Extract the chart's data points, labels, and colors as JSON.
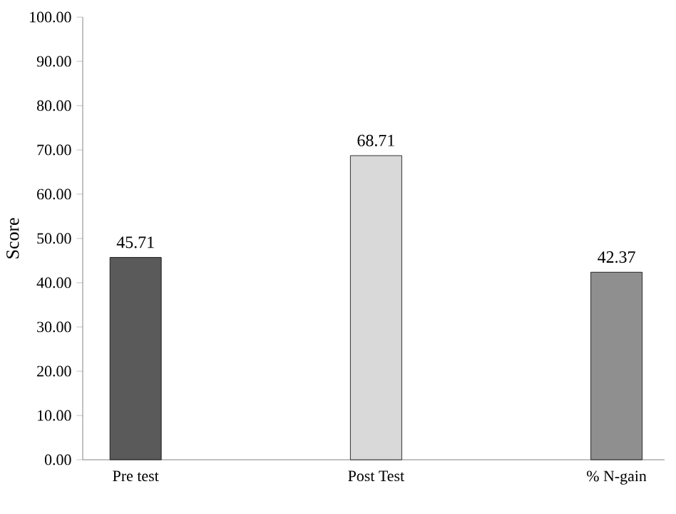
{
  "chart_data": {
    "type": "bar",
    "ylabel": "Score",
    "categories": [
      "Pre test",
      "Post Test",
      "% N-gain"
    ],
    "values": [
      45.71,
      68.71,
      42.37
    ],
    "colors": [
      "#5a5a5a",
      "#d9d9d9",
      "#8f8f8f"
    ],
    "ylim": [
      0,
      100
    ],
    "yticks": [
      {
        "value": 0,
        "label": "0.00"
      },
      {
        "value": 10,
        "label": "10.00"
      },
      {
        "value": 20,
        "label": "20.00"
      },
      {
        "value": 30,
        "label": "30.00"
      },
      {
        "value": 40,
        "label": "40.00"
      },
      {
        "value": 50,
        "label": "50.00"
      },
      {
        "value": 60,
        "label": "60.00"
      },
      {
        "value": 70,
        "label": "70.00"
      },
      {
        "value": 80,
        "label": "80.00"
      },
      {
        "value": 90,
        "label": "90.00"
      },
      {
        "value": 100,
        "label": "100.00"
      }
    ],
    "data_labels": true,
    "grid": false
  }
}
